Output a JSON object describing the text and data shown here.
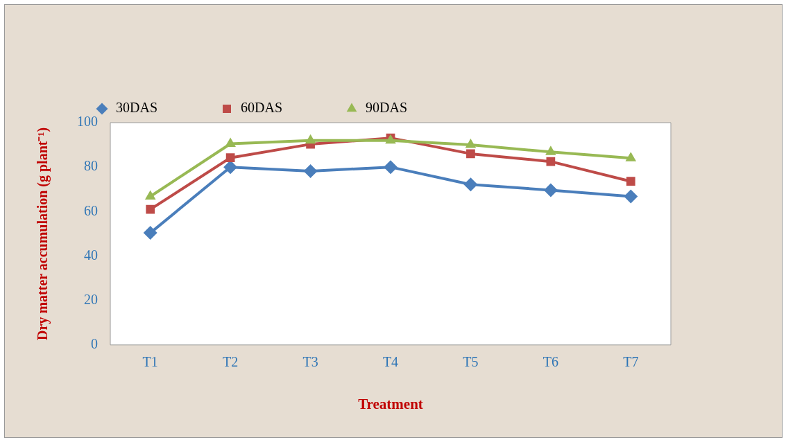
{
  "chart_data": {
    "type": "line",
    "xlabel": "Treatment",
    "ylabel": "Dry matter accumulation (g plant⁻¹)",
    "categories": [
      "T1",
      "T2",
      "T3",
      "T4",
      "T5",
      "T6",
      "T7"
    ],
    "series": [
      {
        "name": "30DAS",
        "color": "#4a7ebb",
        "marker": "diamond",
        "values": [
          50.4,
          80,
          78.2,
          80,
          72.2,
          69.6,
          66.8
        ]
      },
      {
        "name": "60DAS",
        "color": "#be4b48",
        "marker": "square",
        "values": [
          61,
          84.2,
          90.3,
          93.1,
          86,
          82.5,
          73.6
        ]
      },
      {
        "name": "90DAS",
        "color": "#98b954",
        "marker": "triangle",
        "values": [
          66.8,
          90.5,
          92,
          92,
          90,
          86.8,
          84
        ]
      }
    ],
    "ylim": [
      0,
      100
    ],
    "yticks": [
      0,
      20,
      40,
      60,
      80,
      100
    ],
    "grid": false,
    "legend": "top",
    "line_style": "solid"
  }
}
